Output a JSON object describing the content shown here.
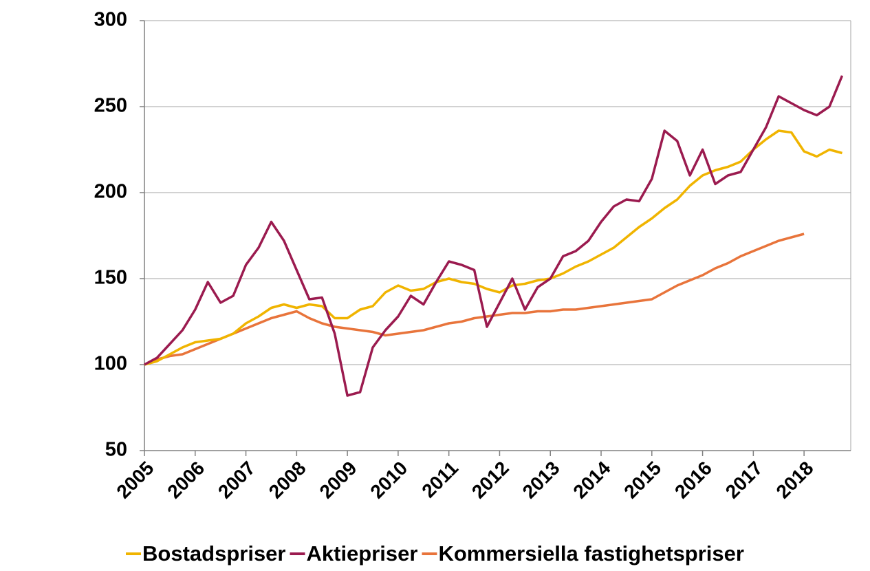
{
  "chart_data": {
    "type": "line",
    "x": [
      2005,
      2005.25,
      2005.5,
      2005.75,
      2006,
      2006.25,
      2006.5,
      2006.75,
      2007,
      2007.25,
      2007.5,
      2007.75,
      2008,
      2008.25,
      2008.5,
      2008.75,
      2009,
      2009.25,
      2009.5,
      2009.75,
      2010,
      2010.25,
      2010.5,
      2010.75,
      2011,
      2011.25,
      2011.5,
      2011.75,
      2012,
      2012.25,
      2012.5,
      2012.75,
      2013,
      2013.25,
      2013.5,
      2013.75,
      2014,
      2014.25,
      2014.5,
      2014.75,
      2015,
      2015.25,
      2015.5,
      2015.75,
      2016,
      2016.25,
      2016.5,
      2016.75,
      2017,
      2017.25,
      2017.5,
      2017.75,
      2018,
      2018.25,
      2018.5,
      2018.75
    ],
    "series": [
      {
        "name": "Bostadspriser",
        "color": "#f0b400",
        "values": [
          100,
          102,
          106,
          110,
          113,
          114,
          115,
          118,
          124,
          128,
          133,
          135,
          133,
          135,
          134,
          127,
          127,
          132,
          134,
          142,
          146,
          143,
          144,
          148,
          150,
          148,
          147,
          144,
          142,
          146,
          147,
          149,
          150,
          153,
          157,
          160,
          164,
          168,
          174,
          180,
          185,
          191,
          196,
          204,
          210,
          213,
          215,
          218,
          225,
          231,
          236,
          235,
          224,
          221,
          225,
          223
        ]
      },
      {
        "name": "Aktiepriser",
        "color": "#9b1b4f",
        "values": [
          100,
          104,
          112,
          120,
          132,
          148,
          136,
          140,
          158,
          168,
          183,
          172,
          155,
          138,
          139,
          118,
          82,
          84,
          110,
          120,
          128,
          140,
          135,
          148,
          160,
          158,
          155,
          122,
          136,
          150,
          132,
          145,
          150,
          163,
          166,
          172,
          183,
          192,
          196,
          195,
          208,
          236,
          230,
          210,
          225,
          205,
          210,
          212,
          225,
          238,
          256,
          252,
          248,
          245,
          250,
          268
        ]
      },
      {
        "name": "Kommersiella fastighetspriser",
        "color": "#e8743b",
        "values": [
          100,
          103,
          105,
          106,
          109,
          112,
          115,
          118,
          121,
          124,
          127,
          129,
          131,
          127,
          124,
          122,
          121,
          120,
          119,
          117,
          118,
          119,
          120,
          122,
          124,
          125,
          127,
          128,
          129,
          130,
          130,
          131,
          131,
          132,
          132,
          133,
          134,
          135,
          136,
          137,
          138,
          142,
          146,
          149,
          152,
          156,
          159,
          163,
          166,
          169,
          172,
          174,
          176,
          null,
          null,
          null
        ]
      }
    ],
    "xlim": [
      2005,
      2018.92
    ],
    "xticks": [
      2005,
      2006,
      2007,
      2008,
      2009,
      2010,
      2011,
      2012,
      2013,
      2014,
      2015,
      2016,
      2017,
      2018
    ],
    "ylim": [
      50,
      300
    ],
    "yticks": [
      50,
      100,
      150,
      200,
      250,
      300
    ],
    "grid": true,
    "legend": "bottom"
  }
}
